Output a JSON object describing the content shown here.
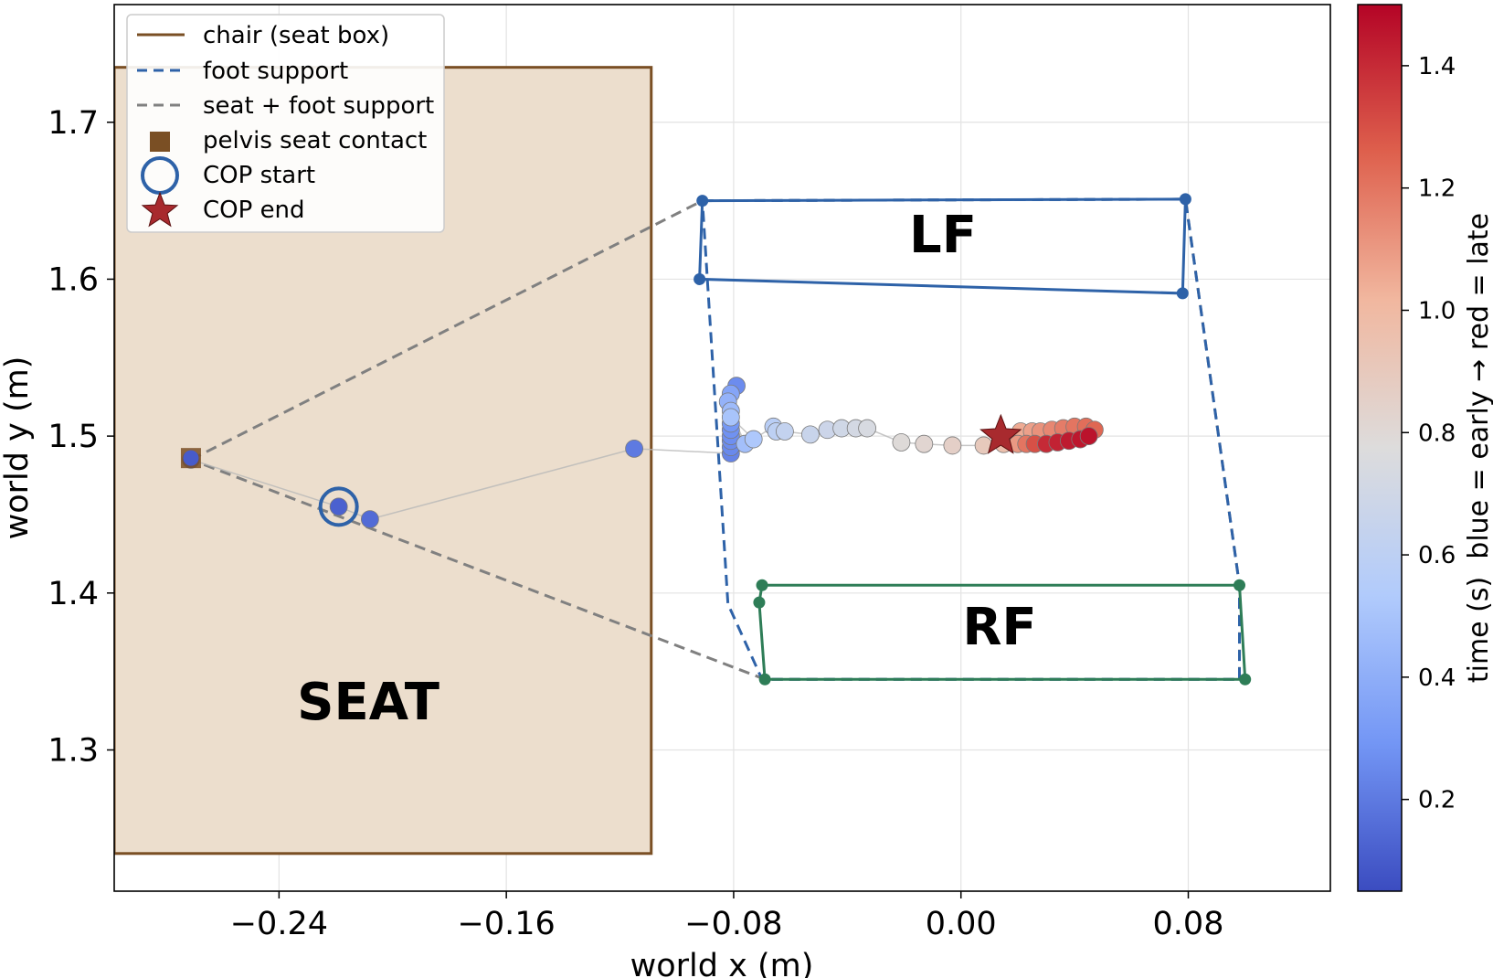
{
  "chart_data": {
    "type": "scatter",
    "xlabel": "world x (m)",
    "ylabel": "world y (m)",
    "xlim": [
      -0.298,
      0.13
    ],
    "ylim": [
      1.21,
      1.775
    ],
    "x_ticks": [
      -0.24,
      -0.16,
      -0.08,
      0.0,
      0.08
    ],
    "x_tick_labels": [
      "−0.24",
      "−0.16",
      "−0.08",
      "0.00",
      "0.08"
    ],
    "y_ticks": [
      1.3,
      1.4,
      1.5,
      1.6,
      1.7
    ],
    "y_tick_labels": [
      "1.3",
      "1.4",
      "1.5",
      "1.6",
      "1.7"
    ],
    "grid": true,
    "legend_placement": "top-left",
    "legend": [
      {
        "label": "chair (seat box)",
        "marker": "line",
        "color": "#7a4f24"
      },
      {
        "label": "foot support",
        "marker": "dashed-line",
        "color": "#2e62a8"
      },
      {
        "label": "seat + foot support",
        "marker": "dashed-line",
        "color": "#808080"
      },
      {
        "label": "pelvis seat contact",
        "marker": "square",
        "color": "#7a4f24"
      },
      {
        "label": "COP start",
        "marker": "open-circle",
        "color": "#2e62a8"
      },
      {
        "label": "COP end",
        "marker": "star",
        "color": "#a82a2e"
      }
    ],
    "annotations": [
      {
        "text": "SEAT",
        "x": -0.21,
        "y": 1.325
      },
      {
        "text": "LF",
        "x": -0.007,
        "y": 1.621
      },
      {
        "text": "RF",
        "x": 0.013,
        "y": 1.388
      }
    ],
    "colorbar": {
      "label": "time (s)  blue = early → red = late",
      "range": [
        0.05,
        1.5
      ],
      "ticks": [
        0.2,
        0.4,
        0.6,
        0.8,
        1.0,
        1.2,
        1.4
      ],
      "tick_labels": [
        "0.2",
        "0.4",
        "0.6",
        "0.8",
        "1.0",
        "1.2",
        "1.4"
      ],
      "colors": [
        "#3b4cc0",
        "#7396f5",
        "#b1cbfc",
        "#dddcdc",
        "#f1b79f",
        "#de604d",
        "#b40426"
      ]
    },
    "chair_seat_box": {
      "x": [
        -0.298,
        -0.109
      ],
      "y": [
        1.234,
        1.735
      ],
      "fill": "#ecdecd",
      "edge": "#7a4f24"
    },
    "foot_support": [
      [
        -0.091,
        1.65
      ],
      [
        0.079,
        1.651
      ],
      [
        0.098,
        1.405
      ],
      [
        0.098,
        1.345
      ],
      [
        -0.07,
        1.345
      ],
      [
        -0.082,
        1.393
      ]
    ],
    "seat_plus_foot_support": [
      [
        -0.271,
        1.485
      ],
      [
        -0.091,
        1.65
      ],
      [
        0.079,
        1.651
      ],
      [
        0.098,
        1.405
      ],
      [
        0.098,
        1.345
      ],
      [
        -0.069,
        1.345
      ]
    ],
    "lf_polygon": [
      [
        -0.091,
        1.65
      ],
      [
        0.079,
        1.651
      ],
      [
        0.078,
        1.591
      ],
      [
        -0.092,
        1.6
      ]
    ],
    "rf_polygon": [
      [
        -0.07,
        1.405
      ],
      [
        0.098,
        1.405
      ],
      [
        0.1,
        1.345
      ],
      [
        -0.069,
        1.345
      ],
      [
        -0.071,
        1.394
      ]
    ],
    "pelvis_seat_contact": {
      "x": -0.271,
      "y": 1.486
    },
    "cop_start": {
      "x": -0.219,
      "y": 1.455
    },
    "cop_end": {
      "x": 0.014,
      "y": 1.5
    },
    "cop_trajectory": [
      {
        "x": -0.271,
        "y": 1.485,
        "t": 0.1
      },
      {
        "x": -0.219,
        "y": 1.455,
        "t": 0.12
      },
      {
        "x": -0.208,
        "y": 1.447,
        "t": 0.15
      },
      {
        "x": -0.115,
        "y": 1.492,
        "t": 0.2
      },
      {
        "x": -0.079,
        "y": 1.532,
        "t": 0.26
      },
      {
        "x": -0.081,
        "y": 1.527,
        "t": 0.36
      },
      {
        "x": -0.082,
        "y": 1.522,
        "t": 0.42
      },
      {
        "x": -0.081,
        "y": 1.516,
        "t": 0.46
      },
      {
        "x": -0.081,
        "y": 1.512,
        "t": 0.5
      },
      {
        "x": -0.081,
        "y": 1.508,
        "t": 0.3
      },
      {
        "x": -0.081,
        "y": 1.504,
        "t": 0.28
      },
      {
        "x": -0.081,
        "y": 1.5,
        "t": 0.27
      },
      {
        "x": -0.081,
        "y": 1.497,
        "t": 0.26
      },
      {
        "x": -0.081,
        "y": 1.493,
        "t": 0.25
      },
      {
        "x": -0.081,
        "y": 1.489,
        "t": 0.23
      },
      {
        "x": -0.076,
        "y": 1.495,
        "t": 0.48
      },
      {
        "x": -0.073,
        "y": 1.498,
        "t": 0.52
      },
      {
        "x": -0.066,
        "y": 1.506,
        "t": 0.58
      },
      {
        "x": -0.065,
        "y": 1.503,
        "t": 0.6
      },
      {
        "x": -0.062,
        "y": 1.503,
        "t": 0.63
      },
      {
        "x": -0.053,
        "y": 1.501,
        "t": 0.66
      },
      {
        "x": -0.047,
        "y": 1.504,
        "t": 0.68
      },
      {
        "x": -0.042,
        "y": 1.505,
        "t": 0.7
      },
      {
        "x": -0.037,
        "y": 1.505,
        "t": 0.72
      },
      {
        "x": -0.033,
        "y": 1.505,
        "t": 0.74
      },
      {
        "x": -0.021,
        "y": 1.496,
        "t": 0.79
      },
      {
        "x": -0.013,
        "y": 1.495,
        "t": 0.82
      },
      {
        "x": -0.003,
        "y": 1.494,
        "t": 0.86
      },
      {
        "x": 0.008,
        "y": 1.494,
        "t": 0.9
      },
      {
        "x": 0.015,
        "y": 1.495,
        "t": 0.96
      },
      {
        "x": 0.018,
        "y": 1.498,
        "t": 1.0
      },
      {
        "x": 0.02,
        "y": 1.495,
        "t": 1.1
      },
      {
        "x": 0.021,
        "y": 1.503,
        "t": 1.05
      },
      {
        "x": 0.023,
        "y": 1.495,
        "t": 1.2
      },
      {
        "x": 0.025,
        "y": 1.503,
        "t": 1.08
      },
      {
        "x": 0.026,
        "y": 1.495,
        "t": 1.3
      },
      {
        "x": 0.028,
        "y": 1.503,
        "t": 1.12
      },
      {
        "x": 0.03,
        "y": 1.495,
        "t": 1.4
      },
      {
        "x": 0.032,
        "y": 1.504,
        "t": 1.15
      },
      {
        "x": 0.034,
        "y": 1.496,
        "t": 1.42
      },
      {
        "x": 0.036,
        "y": 1.505,
        "t": 1.18
      },
      {
        "x": 0.038,
        "y": 1.497,
        "t": 1.44
      },
      {
        "x": 0.04,
        "y": 1.506,
        "t": 1.2
      },
      {
        "x": 0.042,
        "y": 1.498,
        "t": 1.45
      },
      {
        "x": 0.044,
        "y": 1.506,
        "t": 1.22
      },
      {
        "x": 0.045,
        "y": 1.5,
        "t": 1.46
      },
      {
        "x": 0.047,
        "y": 1.504,
        "t": 1.24
      }
    ]
  }
}
